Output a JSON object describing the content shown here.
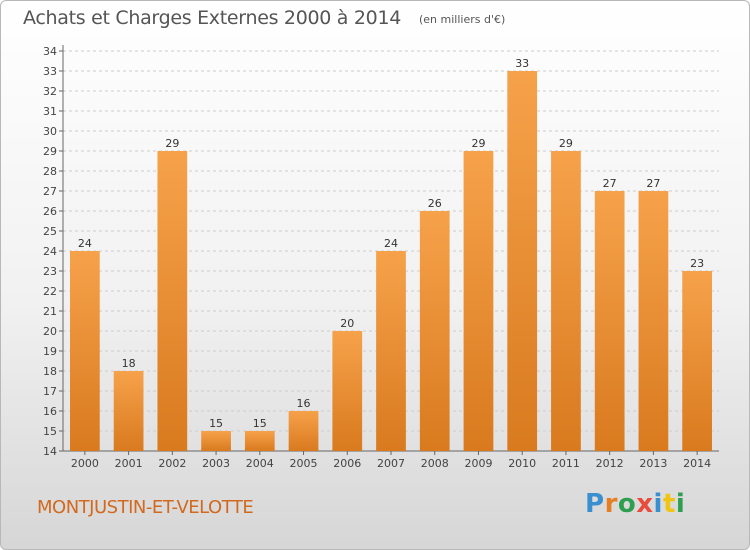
{
  "header": {
    "title": "Achats et Charges Externes 2000 à 2014",
    "subtitle": "(en milliers d'€)"
  },
  "footer": {
    "commune": "MONTJUSTIN-ET-VELOTTE",
    "logo_text": "Proxiti",
    "logo_letters": [
      {
        "ch": "P",
        "color": "#3a8fd0"
      },
      {
        "ch": "r",
        "color": "#e67e22"
      },
      {
        "ch": "o",
        "color": "#2e9e4f"
      },
      {
        "ch": "x",
        "color": "#e74c3c"
      },
      {
        "ch": "i",
        "color": "#3a8fd0"
      },
      {
        "ch": "t",
        "color": "#f1c40f"
      },
      {
        "ch": "i",
        "color": "#2e9e4f"
      }
    ]
  },
  "colors": {
    "bar_light": "#f6a24b",
    "bar_dark": "#d97a1e",
    "commune": "#d2691e",
    "grid": "#cccccc"
  },
  "chart_data": {
    "type": "bar",
    "title": "Achats et Charges Externes 2000 à 2014",
    "subtitle": "(en milliers d'€)",
    "categories": [
      "2000",
      "2001",
      "2002",
      "2003",
      "2004",
      "2005",
      "2006",
      "2007",
      "2008",
      "2009",
      "2010",
      "2011",
      "2012",
      "2013",
      "2014"
    ],
    "values": [
      24,
      18,
      29,
      15,
      15,
      16,
      20,
      24,
      26,
      29,
      33,
      29,
      27,
      27,
      23
    ],
    "ylim": [
      14,
      34
    ],
    "yticks": [
      14,
      15,
      16,
      17,
      18,
      19,
      20,
      21,
      22,
      23,
      24,
      25,
      26,
      27,
      28,
      29,
      30,
      31,
      32,
      33,
      34
    ],
    "grid": true,
    "xlabel": "",
    "ylabel": ""
  }
}
